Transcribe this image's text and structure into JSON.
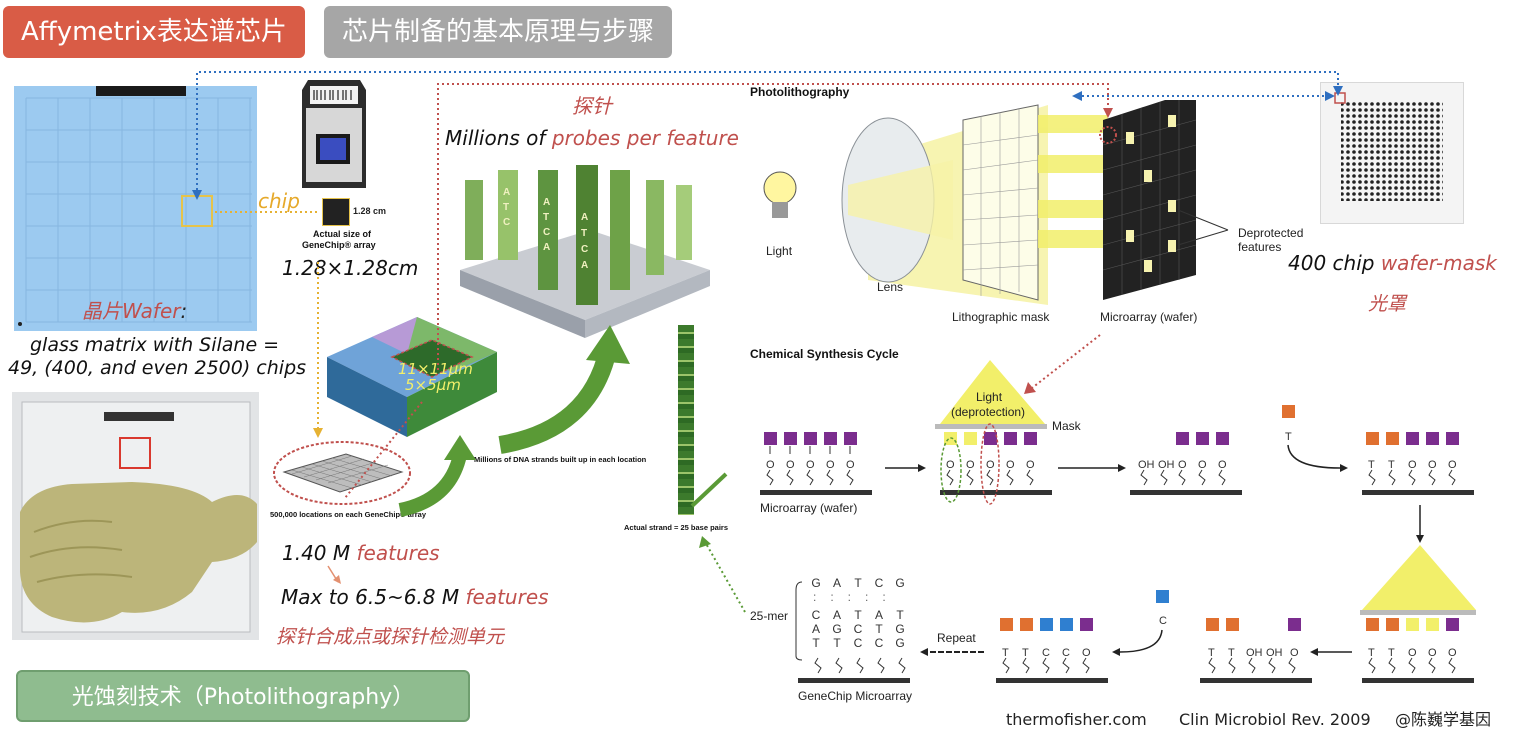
{
  "header": {
    "tag1": "Affymetrix表达谱芯片",
    "tag2": "芯片制备的基本原理与步骤",
    "tag1_color": "#d95c46",
    "tag2_color": "#a6a6a6"
  },
  "wafer": {
    "chip_word": "chip",
    "title": "晶片Wafer",
    "title_colon": ":",
    "desc_line1": "glass matrix with Silane =",
    "desc_line2": "49, (400, and even 2500) chips"
  },
  "genechip": {
    "size_label": "1.28 cm",
    "actual_size_line1": "Actual size of",
    "actual_size_line2": "GeneChip® array",
    "dimension": "1.28×1.28cm"
  },
  "probe": {
    "cn_title": "探针",
    "millions_prefix": "Millions of ",
    "millions_highlight": "probes per feature",
    "feature_size1": "11×11μm",
    "feature_size2": "5×5μm",
    "dna_strands": "Millions of DNA strands built up in each location",
    "locations": "500,000 locations on each GeneChip® array",
    "actual_strand": "Actual strand = 25 base pairs"
  },
  "features": {
    "line1_num": "1.40 M ",
    "line1_word": "features",
    "line2_num": "Max to 6.5~6.8 M ",
    "line2_word": "features",
    "cn_desc": "探针合成点或探针检测单元"
  },
  "technique_button": "光蚀刻技术（Photolithography）",
  "photolithography": {
    "title": "Photolithography",
    "light": "Light",
    "lens": "Lens",
    "mask": "Lithographic mask",
    "wafer": "Microarray (wafer)",
    "deprotected1": "Deprotected",
    "deprotected2": "features"
  },
  "wafer_mask": {
    "prefix": "400 chip ",
    "highlight": "wafer-mask",
    "cn": "光罩"
  },
  "synthesis": {
    "title": "Chemical Synthesis Cycle",
    "microarray_wafer": "Microarray (wafer)",
    "light_line1": "Light",
    "light_line2": "(deprotection)",
    "mask": "Mask",
    "oh": "OH",
    "o": "O",
    "t": "T",
    "c": "C",
    "repeat": "Repeat",
    "mer": "25-mer",
    "genechip_microarray": "GeneChip  Microarray",
    "seq_top": [
      "G",
      "A",
      "T",
      "C",
      "G"
    ],
    "seq_r2": [
      "C",
      "A",
      "T",
      "A",
      "T"
    ],
    "seq_r3": [
      "A",
      "G",
      "C",
      "T",
      "G"
    ],
    "seq_r4": [
      "T",
      "T",
      "C",
      "C",
      "G"
    ]
  },
  "footer": {
    "source1": "thermofisher.com",
    "source2": "Clin Microbiol Rev. 2009",
    "watermark": "@陈巍学基因"
  },
  "colors": {
    "purple": "#7b2d8e",
    "orange": "#e07030",
    "blue": "#2f7fd0",
    "yellow": "#f2ef6a",
    "accent_red": "#c0504d",
    "button_green": "#8fbc8f"
  }
}
